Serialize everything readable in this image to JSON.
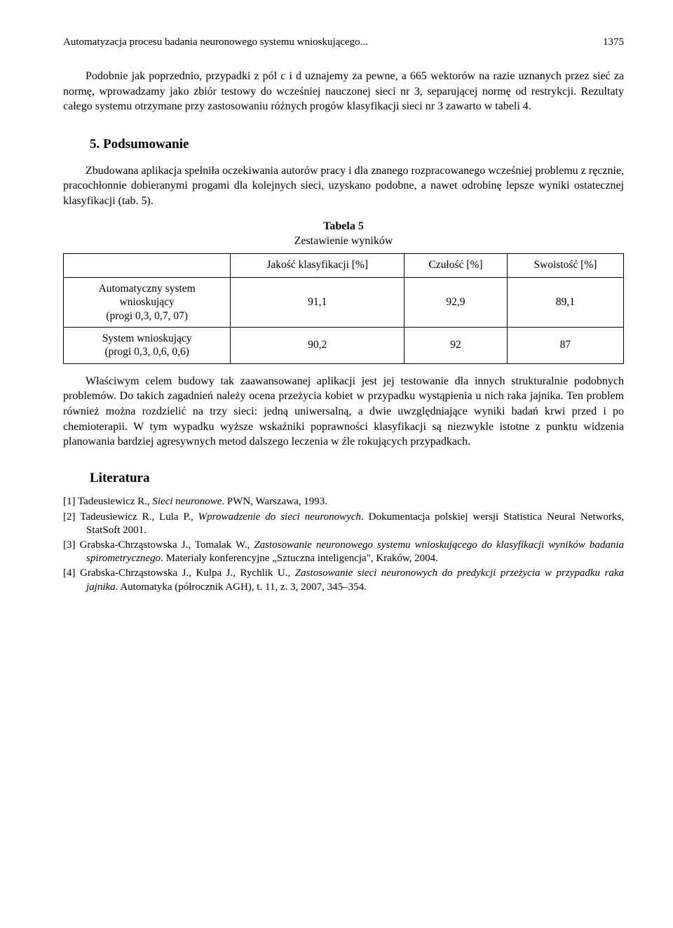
{
  "header": {
    "running_title": "Automatyzacja procesu badania neuronowego systemu wnioskującego...",
    "page_number": "1375"
  },
  "para1": "Podobnie jak poprzednio, przypadki z pól c i d uznajemy za pewne, a 665 wektorów na razie uznanych przez sieć za normę, wprowadzamy jako zbiór testowy do wcześniej nauczonej sieci nr 3, separującej normę od restrykcji. Rezultaty całego systemu otrzymane przy zastosowaniu różnych progów klasyfikacji sieci nr 3 zawarto w tabeli 4.",
  "section5": {
    "title": "5. Podsumowanie",
    "para": "Zbudowana aplikacja spełniła oczekiwania autorów pracy i dla znanego rozpracowanego wcześniej problemu z ręcznie, pracochłonnie dobieranymi progami dla kolejnych sieci, uzyskano podobne, a nawet odrobinę lepsze wyniki ostatecznej klasyfikacji (tab. 5)."
  },
  "table5": {
    "label": "Tabela 5",
    "caption": "Zestawienie wyników",
    "columns": [
      "Jakość klasyfikacji [%]",
      "Czułość [%]",
      "Swoistość [%]"
    ],
    "rows": [
      {
        "label_l1": "Automatyczny system",
        "label_l2": "wnioskujący",
        "label_l3": "(progi 0,3, 0,7, 07)",
        "c1": "91,1",
        "c2": "92,9",
        "c3": "89,1"
      },
      {
        "label_l1": "System wnioskujący",
        "label_l2": "(progi 0,3, 0,6, 0,6)",
        "label_l3": "",
        "c1": "90,2",
        "c2": "92",
        "c3": "87"
      }
    ]
  },
  "para_after_table": "Właściwym celem budowy tak zaawansowanej aplikacji jest jej testowanie dla innych strukturalnie podobnych problemów. Do takich zagadnień należy ocena przeżycia kobiet w przypadku wystąpienia u nich raka jajnika. Ten problem również można rozdzielić na trzy sieci: jedną uniwersalną, a dwie uwzględniające wyniki badań krwi przed i po chemioterapii. W tym wypadku wyższe wskaźniki poprawności klasyfikacji są niezwykle istotne z punktu widzenia planowania bardziej agresywnych metod dalszego leczenia w źle rokujących przypadkach.",
  "literature": {
    "title": "Literatura",
    "refs": {
      "r1_num": "[1]",
      "r1_a": "Tadeusiewicz R., ",
      "r1_i": "Sieci neuronowe",
      "r1_b": ". PWN, Warszawa, 1993.",
      "r2_num": "[2]",
      "r2_a": "Tadeusiewicz R., Lula P., ",
      "r2_i": "Wprowadzenie do sieci neuronowych",
      "r2_b": ". Dokumentacja polskiej wersji Statistica Neural Networks, StatSoft 2001.",
      "r3_num": "[3]",
      "r3_a": "Grabska-Chrząstowska J., Tomalak W., ",
      "r3_i": "Zastosowanie neuronowego systemu wnioskującego do klasyfikacji wyników badania spirometrycznego",
      "r3_b": ". Materiały konferencyjne „Sztuczna inteligencja\", Kraków, 2004.",
      "r4_num": "[4]",
      "r4_a": "Grabska-Chrząstowska J., Kulpa J., Rychlik U., ",
      "r4_i": "Zastosowanie sieci neuronowych do predykcji przeżycia w przypadku raka jajnika",
      "r4_b": ". Automatyka (półrocznik AGH), t. 11, z. 3, 2007, 345–354."
    }
  }
}
